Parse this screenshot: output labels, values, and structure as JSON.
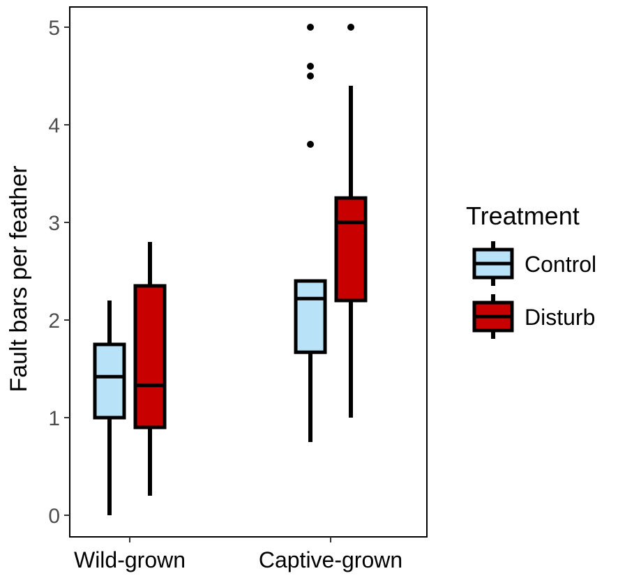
{
  "chart_data": {
    "type": "boxplot",
    "title": "",
    "xlabel": "",
    "ylabel": "Fault bars per feather",
    "ylim": [
      -0.22,
      5.22
    ],
    "yticks": [
      0,
      1,
      2,
      3,
      4,
      5
    ],
    "grid": false,
    "categories": [
      "Wild-grown",
      "Captive-grown"
    ],
    "legend": {
      "title": "Treatment",
      "position": "right",
      "entries": [
        "Control",
        "Disturb"
      ]
    },
    "series": [
      {
        "name": "Control",
        "color": "#b8e2f8",
        "boxes": [
          {
            "category": "Wild-grown",
            "whisker_low": 0.0,
            "q1": 1.0,
            "median": 1.42,
            "q3": 1.75,
            "whisker_high": 2.2,
            "outliers": []
          },
          {
            "category": "Captive-grown",
            "whisker_low": 0.75,
            "q1": 1.67,
            "median": 2.22,
            "q3": 2.4,
            "whisker_high": 2.4,
            "outliers": [
              3.8,
              4.5,
              4.6,
              5.0
            ]
          }
        ]
      },
      {
        "name": "Disturb",
        "color": "#c80000",
        "boxes": [
          {
            "category": "Wild-grown",
            "whisker_low": 0.2,
            "q1": 0.9,
            "median": 1.33,
            "q3": 2.35,
            "whisker_high": 2.8,
            "outliers": []
          },
          {
            "category": "Captive-grown",
            "whisker_low": 1.0,
            "q1": 2.2,
            "median": 3.0,
            "q3": 3.25,
            "whisker_high": 4.4,
            "outliers": [
              5.0
            ]
          }
        ]
      }
    ]
  }
}
